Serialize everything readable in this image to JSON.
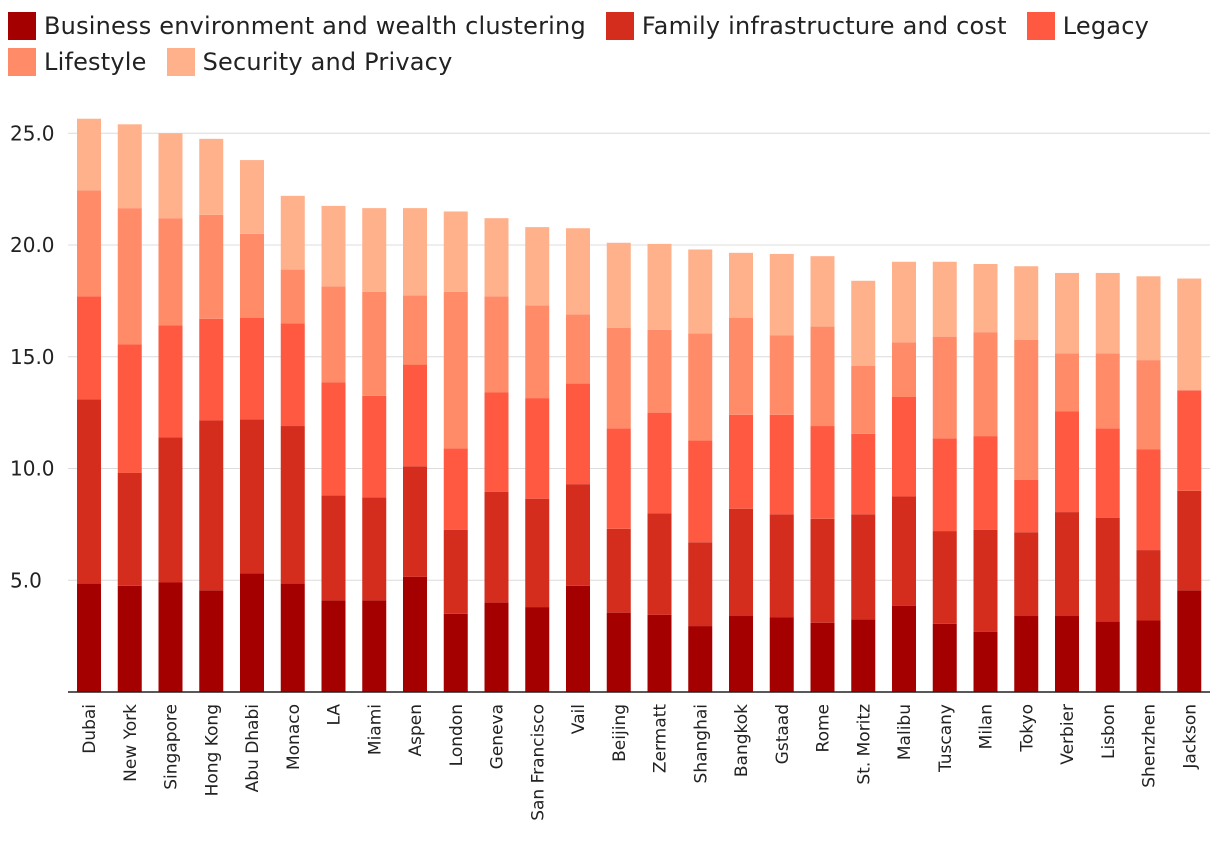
{
  "chart_data": {
    "type": "bar",
    "stacked": true,
    "title": "",
    "xlabel": "",
    "ylabel": "",
    "ylim": [
      0,
      26
    ],
    "yticks": [
      "5.0",
      "10.0",
      "15.0",
      "20.0",
      "25.0"
    ],
    "ytick_values": [
      5,
      10,
      15,
      20,
      25
    ],
    "categories": [
      "Dubai",
      "New York",
      "Singapore",
      "Hong Kong",
      "Abu Dhabi",
      "Monaco",
      "LA",
      "Miami",
      "Aspen",
      "London",
      "Geneva",
      "San Francisco",
      "Vail",
      "Beijing",
      "Zermatt",
      "Shanghai",
      "Bangkok",
      "Gstaad",
      "Rome",
      "St. Moritz",
      "Malibu",
      "Tuscany",
      "Milan",
      "Tokyo",
      "Verbier",
      "Lisbon",
      "Shenzhen",
      "Jackson"
    ],
    "series": [
      {
        "name": "Business environment and wealth clustering",
        "color": "#a50000",
        "values": [
          4.85,
          4.75,
          4.9,
          4.55,
          5.3,
          4.85,
          4.1,
          4.1,
          5.15,
          3.5,
          4.0,
          3.8,
          4.75,
          3.55,
          3.45,
          2.95,
          3.4,
          3.35,
          3.1,
          3.25,
          3.85,
          3.05,
          2.7,
          3.4,
          3.4,
          3.15,
          3.2,
          4.55
        ]
      },
      {
        "name": "Family infrastructure and cost",
        "color": "#d42c1d",
        "values": [
          8.25,
          5.05,
          6.5,
          7.6,
          6.9,
          7.05,
          4.7,
          4.6,
          4.95,
          3.75,
          4.95,
          4.85,
          4.55,
          3.75,
          4.55,
          3.75,
          4.8,
          4.6,
          4.65,
          4.7,
          4.9,
          4.15,
          4.55,
          3.75,
          4.65,
          4.65,
          3.15,
          4.45
        ]
      },
      {
        "name": "Legacy",
        "color": "#ff5a41",
        "values": [
          4.6,
          5.75,
          5.0,
          4.55,
          4.55,
          4.6,
          5.05,
          4.55,
          4.55,
          3.65,
          4.45,
          4.5,
          4.5,
          4.5,
          4.5,
          4.55,
          4.2,
          4.45,
          4.15,
          3.6,
          4.45,
          4.15,
          4.2,
          2.35,
          4.5,
          4.0,
          4.5,
          4.5
        ]
      },
      {
        "name": "Lifestyle",
        "color": "#ff8b69",
        "values": [
          4.75,
          6.1,
          4.8,
          4.65,
          3.75,
          2.4,
          4.3,
          4.65,
          3.1,
          7.0,
          4.3,
          4.15,
          3.1,
          4.5,
          3.7,
          4.8,
          4.35,
          3.55,
          4.45,
          3.05,
          2.45,
          4.55,
          4.65,
          6.25,
          2.6,
          3.35,
          4.0,
          0.0
        ]
      },
      {
        "name": "Security and Privacy",
        "color": "#ffb18c",
        "values": [
          3.2,
          3.75,
          3.8,
          3.4,
          3.3,
          3.3,
          3.6,
          3.75,
          3.9,
          3.6,
          3.5,
          3.5,
          3.85,
          3.8,
          3.85,
          3.75,
          2.9,
          3.65,
          3.15,
          3.8,
          3.6,
          3.35,
          3.05,
          3.3,
          3.6,
          3.6,
          3.75,
          5.0
        ]
      }
    ]
  }
}
